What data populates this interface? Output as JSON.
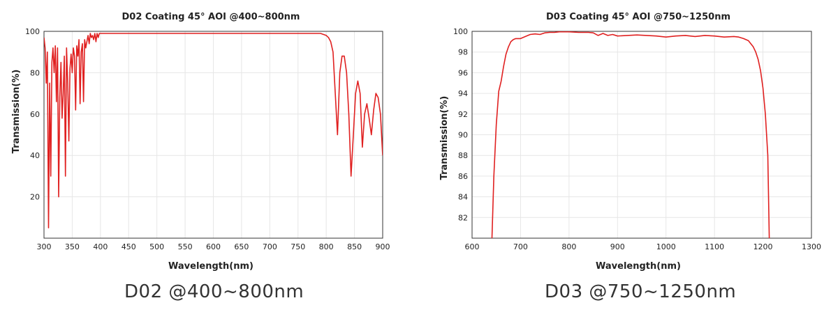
{
  "chart_data": [
    {
      "type": "line",
      "title": "D02 Coating 45° AOI @400~800nm",
      "xlabel": "Wavelength(nm)",
      "ylabel": "Transmission(%)",
      "xlim": [
        300,
        900
      ],
      "ylim": [
        0,
        100
      ],
      "xticks": [
        300,
        350,
        400,
        450,
        500,
        550,
        600,
        650,
        700,
        750,
        800,
        850,
        900
      ],
      "yticks": [
        20,
        40,
        60,
        80,
        100
      ],
      "grid": true,
      "line_color": "#e02020",
      "series": [
        {
          "x": [
            300,
            302,
            304,
            306,
            308,
            310,
            312,
            314,
            316,
            318,
            320,
            322,
            324,
            326,
            328,
            330,
            332,
            334,
            336,
            338,
            340,
            342,
            344,
            346,
            348,
            350,
            352,
            354,
            356,
            358,
            360,
            362,
            364,
            366,
            368,
            370,
            372,
            374,
            376,
            378,
            380,
            382,
            384,
            386,
            388,
            390,
            392,
            394,
            396,
            398,
            400,
            420,
            450,
            500,
            550,
            600,
            650,
            700,
            750,
            790,
            800,
            804,
            808,
            812,
            816,
            820,
            824,
            828,
            832,
            836,
            840,
            844,
            848,
            852,
            856,
            860,
            864,
            868,
            872,
            876,
            880,
            884,
            888,
            892,
            896,
            900
          ],
          "y": [
            97,
            92,
            75,
            90,
            5,
            75,
            30,
            85,
            92,
            80,
            93,
            66,
            92,
            20,
            68,
            85,
            58,
            70,
            88,
            30,
            92,
            75,
            47,
            82,
            89,
            80,
            92,
            88,
            62,
            93,
            88,
            96,
            65,
            90,
            94,
            66,
            96,
            92,
            95,
            98,
            94,
            99,
            97,
            98,
            96,
            99,
            95,
            99,
            97,
            99,
            99,
            99,
            99,
            99,
            99,
            99,
            99,
            99,
            99,
            99,
            98,
            97,
            95,
            90,
            70,
            50,
            80,
            88,
            88,
            80,
            60,
            30,
            50,
            70,
            76,
            70,
            44,
            60,
            65,
            58,
            50,
            62,
            70,
            68,
            60,
            40
          ]
        }
      ]
    },
    {
      "type": "line",
      "title": "D03 Coating 45° AOI @750~1250nm",
      "xlabel": "Wavelength(nm)",
      "ylabel": "Transmission(%)",
      "xlim": [
        600,
        1300
      ],
      "ylim": [
        80,
        100
      ],
      "xticks": [
        600,
        700,
        800,
        900,
        1000,
        1100,
        1200,
        1300
      ],
      "yticks": [
        82,
        84,
        86,
        88,
        90,
        92,
        94,
        96,
        98,
        100
      ],
      "grid": true,
      "line_color": "#e02020",
      "series": [
        {
          "x": [
            641,
            645,
            650,
            655,
            660,
            665,
            670,
            675,
            680,
            685,
            690,
            700,
            710,
            720,
            730,
            740,
            750,
            760,
            770,
            780,
            800,
            820,
            840,
            850,
            860,
            870,
            880,
            890,
            900,
            920,
            940,
            960,
            980,
            1000,
            1020,
            1040,
            1060,
            1080,
            1100,
            1120,
            1140,
            1150,
            1160,
            1170,
            1180,
            1185,
            1190,
            1195,
            1200,
            1205,
            1210,
            1213
          ],
          "y": [
            80,
            86,
            91,
            94.2,
            95.2,
            96.6,
            97.8,
            98.5,
            99,
            99.2,
            99.3,
            99.3,
            99.5,
            99.7,
            99.75,
            99.7,
            99.85,
            99.9,
            99.9,
            99.95,
            99.95,
            99.9,
            99.9,
            99.85,
            99.6,
            99.8,
            99.6,
            99.7,
            99.55,
            99.6,
            99.65,
            99.6,
            99.55,
            99.45,
            99.55,
            99.6,
            99.5,
            99.6,
            99.55,
            99.45,
            99.5,
            99.45,
            99.3,
            99.1,
            98.5,
            98,
            97.3,
            96.2,
            94.5,
            92,
            88,
            80
          ]
        }
      ]
    }
  ],
  "captions": {
    "left": "D02 @400~800nm",
    "right": "D03 @750~1250nm"
  }
}
